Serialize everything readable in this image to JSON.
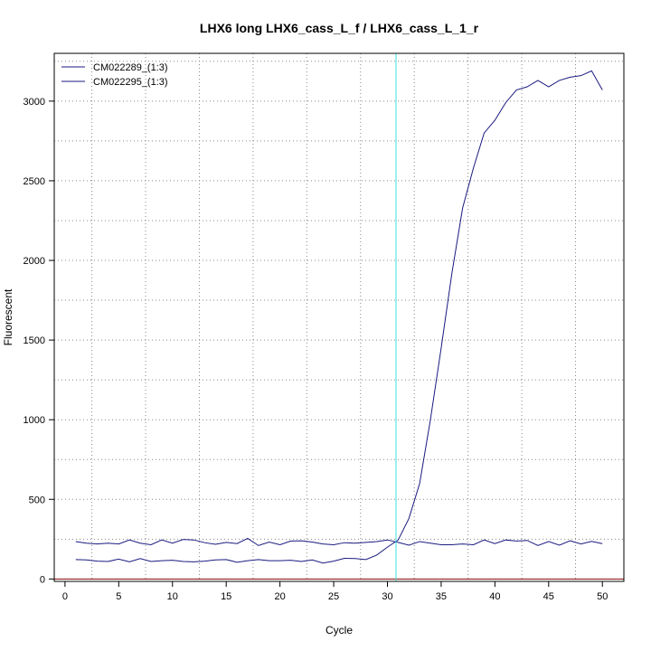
{
  "chart_data": {
    "type": "line",
    "title": "LHX6 long LHX6_cass_L_f / LHX6_cass_L_1_r",
    "xlabel": "Cycle",
    "ylabel": "Fluorescent",
    "xlim": [
      -1,
      52
    ],
    "ylim": [
      -15,
      3300
    ],
    "x_ticks": [
      0,
      5,
      10,
      15,
      20,
      25,
      30,
      35,
      40,
      45,
      50
    ],
    "y_ticks": [
      0,
      500,
      1000,
      1500,
      2000,
      2500,
      3000
    ],
    "grid": true,
    "legend_position": "top-left",
    "threshold_cycle": 30.8,
    "baseline": 0,
    "colors": {
      "series": "#1a1a80",
      "threshold": "#40e0e0",
      "baseline": "#8b0000",
      "grid": "#888888"
    },
    "x": [
      1,
      2,
      3,
      4,
      5,
      6,
      7,
      8,
      9,
      10,
      11,
      12,
      13,
      14,
      15,
      16,
      17,
      18,
      19,
      20,
      21,
      22,
      23,
      24,
      25,
      26,
      27,
      28,
      29,
      30,
      31,
      32,
      33,
      34,
      35,
      36,
      37,
      38,
      39,
      40,
      41,
      42,
      43,
      44,
      45,
      46,
      47,
      48,
      49,
      50
    ],
    "series": [
      {
        "name": "CM022289_(1:3)",
        "values": [
          122,
          120,
          112,
          110,
          125,
          108,
          128,
          110,
          115,
          118,
          110,
          108,
          112,
          120,
          122,
          105,
          115,
          122,
          115,
          115,
          118,
          110,
          120,
          100,
          112,
          130,
          128,
          122,
          150,
          200,
          245,
          380,
          600,
          1000,
          1450,
          1920,
          2330,
          2580,
          2800,
          2880,
          2990,
          3070,
          3090,
          3130,
          3090,
          3130,
          3150,
          3160,
          3190,
          3070
        ]
      },
      {
        "name": "CM022295_(1:3)",
        "values": [
          235,
          225,
          220,
          225,
          220,
          245,
          225,
          215,
          245,
          225,
          248,
          245,
          228,
          218,
          230,
          222,
          255,
          210,
          232,
          215,
          238,
          240,
          232,
          220,
          215,
          228,
          225,
          230,
          235,
          245,
          230,
          212,
          235,
          225,
          215,
          215,
          220,
          215,
          245,
          222,
          245,
          238,
          242,
          210,
          235,
          212,
          240,
          220,
          236,
          222
        ]
      }
    ]
  }
}
